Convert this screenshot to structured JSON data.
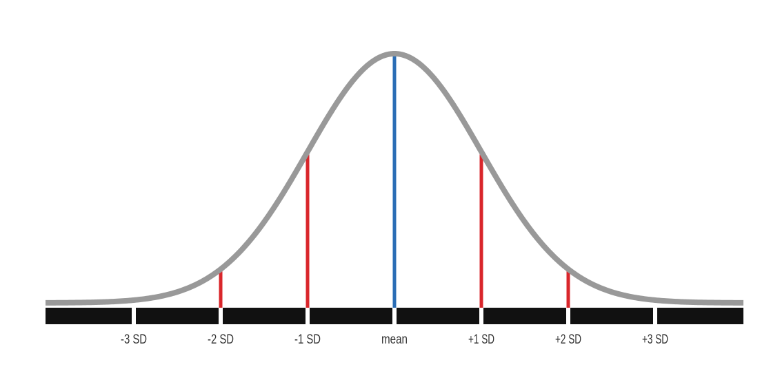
{
  "axis": {
    "labels": [
      "-3 SD",
      "-2 SD",
      "-1 SD",
      "mean",
      "+1 SD",
      "+2 SD",
      "+3 SD"
    ]
  }
}
